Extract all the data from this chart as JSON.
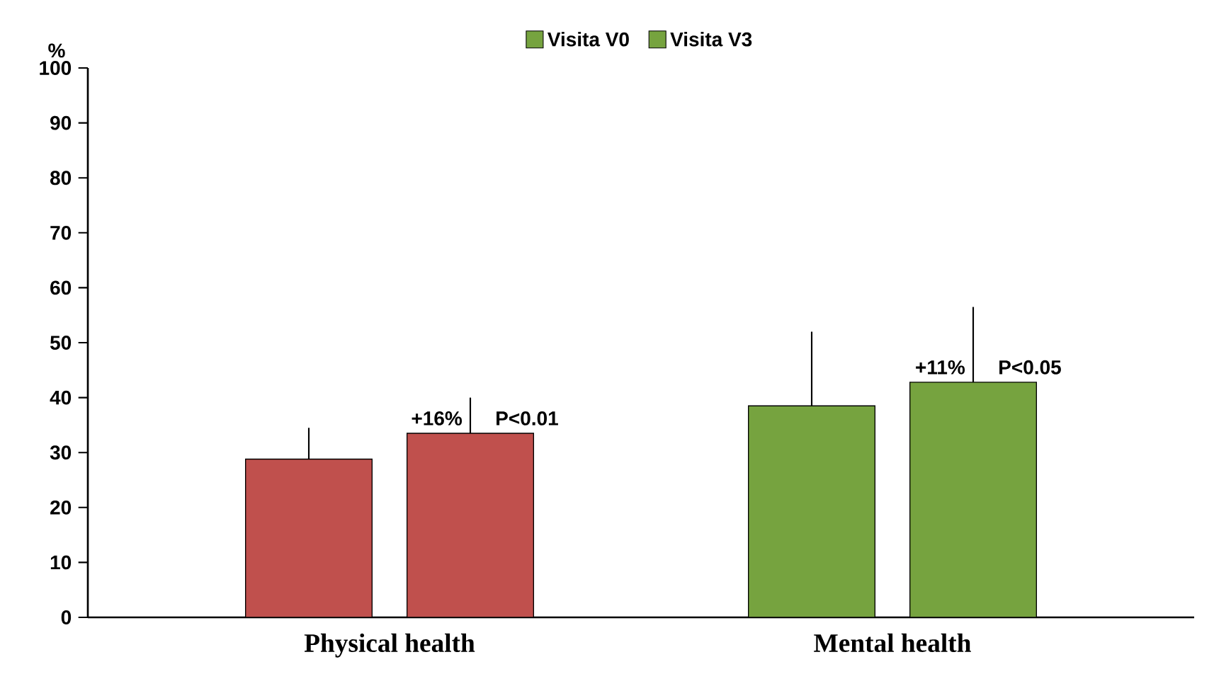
{
  "chart_data": {
    "type": "bar",
    "ylabel": "%",
    "categories": [
      "Physical health",
      "Mental health"
    ],
    "series": [
      {
        "name": "Visita V0",
        "colors": [
          "#c0504d",
          "#76a33f"
        ],
        "values": [
          28.8,
          38.5
        ],
        "errors": [
          [
            28.8,
            34.5
          ],
          [
            38.5,
            52
          ]
        ]
      },
      {
        "name": "Visita V3",
        "colors": [
          "#c0504d",
          "#76a33f"
        ],
        "values": [
          33.5,
          42.8
        ],
        "errors": [
          [
            33.5,
            40
          ],
          [
            42.8,
            56.5
          ]
        ]
      }
    ],
    "ylim": [
      0,
      100
    ],
    "yticks": [
      0,
      10,
      20,
      30,
      40,
      50,
      60,
      70,
      80,
      90,
      100
    ],
    "annotations": [
      "+16%",
      "P<0.01",
      "+11%",
      "P<0.05"
    ],
    "legend": "top",
    "grid": false
  }
}
